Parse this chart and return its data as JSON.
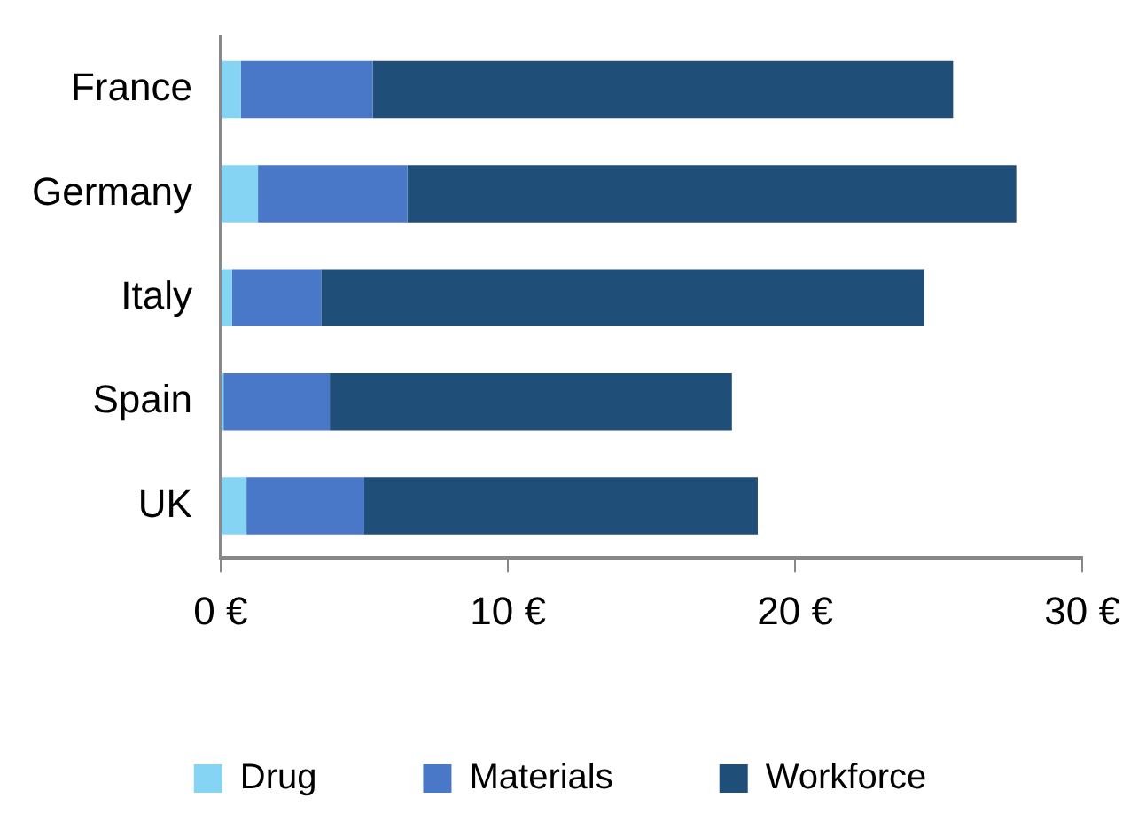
{
  "chart_data": {
    "type": "bar",
    "orientation": "horizontal",
    "stacked": true,
    "categories": [
      "France",
      "Germany",
      "Italy",
      "Spain",
      "UK"
    ],
    "series": [
      {
        "name": "Drug",
        "color": "#86d4f4",
        "values": [
          0.7,
          1.3,
          0.4,
          0.1,
          0.9
        ]
      },
      {
        "name": "Materials",
        "color": "#4a78c8",
        "values": [
          4.6,
          5.2,
          3.1,
          3.7,
          4.1
        ]
      },
      {
        "name": "Workforce",
        "color": "#1f4e79",
        "values": [
          20.2,
          21.2,
          21.0,
          14.0,
          13.7
        ]
      }
    ],
    "xlim": [
      0,
      30
    ],
    "xticks": [
      {
        "value": 0,
        "label": "0 €"
      },
      {
        "value": 10,
        "label": "10 €"
      },
      {
        "value": 20,
        "label": "20 €"
      },
      {
        "value": 30,
        "label": "30 €"
      }
    ],
    "grid": false,
    "legend": "bottom"
  }
}
